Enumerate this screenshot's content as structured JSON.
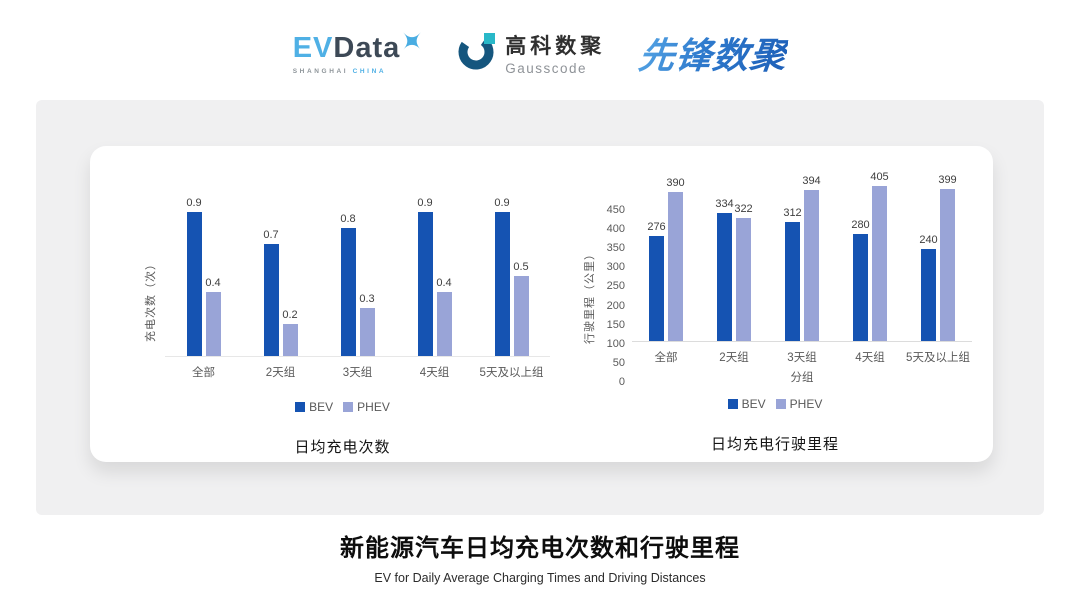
{
  "header": {
    "evdata_logo": {
      "ev": "EV",
      "data": "Data",
      "sub_left": "SHANGHAI",
      "sub_right": "CHINA"
    },
    "gausscode_logo": {
      "cn": "高科数聚",
      "en": "Gausscode"
    },
    "pioneer_logo": {
      "text": "先锋数聚"
    }
  },
  "colors": {
    "bev": "#1553B2",
    "phev": "#99A4D7",
    "card_bg": "#F0F0F1",
    "evdata_blue": "#4FB0E5",
    "evdata_dark": "#3D4956",
    "gauss_ring": "#15567E",
    "gauss_teal": "#29B8C8",
    "pioneer_blue": "#2E79CC"
  },
  "chart_data": [
    {
      "type": "bar",
      "title": "日均充电次数",
      "ylabel": "充电次数（次）",
      "xlabel": "",
      "categories": [
        "全部",
        "2天组",
        "3天组",
        "4天组",
        "5天及以上组"
      ],
      "series": [
        {
          "name": "BEV",
          "color": "#1553B2",
          "values": [
            0.9,
            0.7,
            0.8,
            0.9,
            0.9
          ]
        },
        {
          "name": "PHEV",
          "color": "#99A4D7",
          "values": [
            0.4,
            0.2,
            0.3,
            0.4,
            0.5
          ]
        }
      ],
      "ylim": [
        0,
        1.0
      ],
      "yticks": [],
      "grid": false,
      "legend_position": "bottom"
    },
    {
      "type": "bar",
      "title": "日均充电行驶里程",
      "ylabel": "行驶里程（公里）",
      "xlabel": "分组",
      "categories": [
        "全部",
        "2天组",
        "3天组",
        "4天组",
        "5天及以上组"
      ],
      "series": [
        {
          "name": "BEV",
          "color": "#1553B2",
          "values": [
            276,
            334,
            312,
            280,
            240
          ]
        },
        {
          "name": "PHEV",
          "color": "#99A4D7",
          "values": [
            390,
            322,
            394,
            405,
            399
          ]
        }
      ],
      "ylim": [
        0,
        450
      ],
      "yticks": [
        0,
        50,
        100,
        150,
        200,
        250,
        300,
        350,
        400,
        450
      ],
      "grid": false,
      "legend_position": "bottom"
    }
  ],
  "footer": {
    "title": "新能源汽车日均充电次数和行驶里程",
    "subtitle": "EV for Daily Average Charging Times and Driving Distances"
  }
}
